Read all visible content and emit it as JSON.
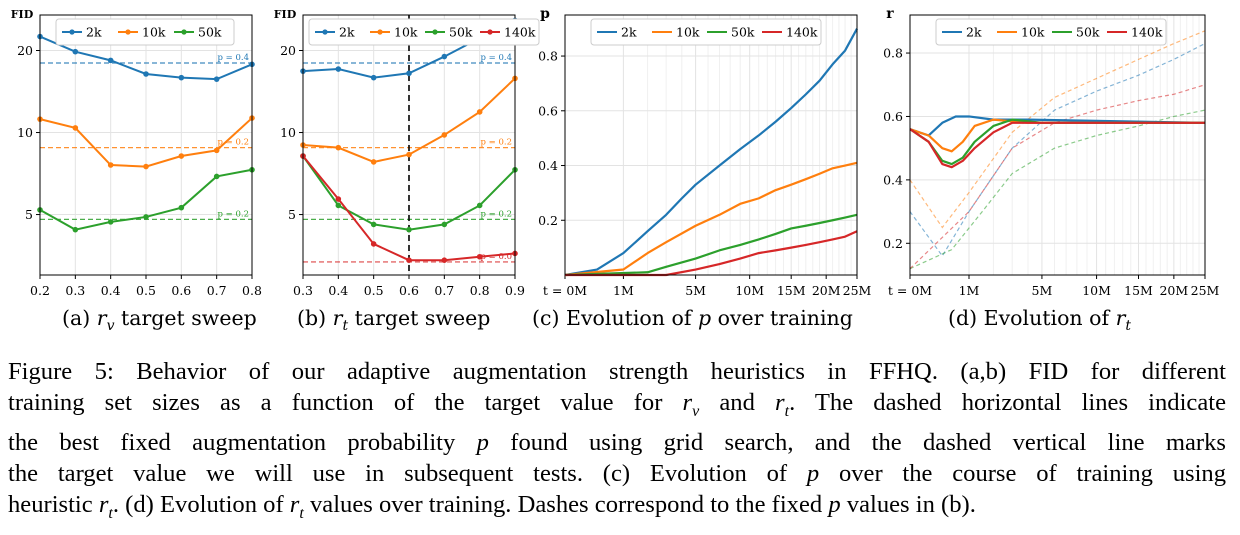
{
  "colors": {
    "blue": "#1f77b4",
    "orange": "#ff7f0e",
    "green": "#2ca02c",
    "red": "#d62728",
    "grid": "#e3e3e3"
  },
  "chart_data": [
    {
      "id": "a",
      "type": "line",
      "ylabel": "FID",
      "y_scale": "log",
      "ylim": [
        3,
        27
      ],
      "yticks": [
        5,
        10,
        20
      ],
      "xlim": [
        0.2,
        0.8
      ],
      "xticks": [
        "0.2",
        "0.3",
        "0.4",
        "0.5",
        "0.6",
        "0.7",
        "0.8"
      ],
      "x": [
        0.2,
        0.3,
        0.4,
        0.5,
        0.6,
        0.7,
        0.8
      ],
      "legend": "top",
      "series": [
        {
          "name": "2k",
          "color": "#1f77b4",
          "values": [
            22.5,
            19.8,
            18.4,
            16.4,
            15.9,
            15.7,
            17.8
          ]
        },
        {
          "name": "10k",
          "color": "#ff7f0e",
          "values": [
            11.2,
            10.4,
            7.6,
            7.5,
            8.2,
            8.6,
            11.3
          ]
        },
        {
          "name": "50k",
          "color": "#2ca02c",
          "values": [
            5.2,
            4.4,
            4.7,
            4.9,
            5.3,
            6.9,
            7.3
          ]
        }
      ],
      "hlines": [
        {
          "label": "p = 0.4",
          "color": "#1f77b4",
          "value": 18.0
        },
        {
          "label": "p = 0.2",
          "color": "#ff7f0e",
          "value": 8.8
        },
        {
          "label": "p = 0.2",
          "color": "#2ca02c",
          "value": 4.8
        }
      ]
    },
    {
      "id": "b",
      "type": "line",
      "ylabel": "FID",
      "y_scale": "log",
      "ylim": [
        3,
        27
      ],
      "yticks": [
        5,
        10,
        20
      ],
      "xlim": [
        0.3,
        0.9
      ],
      "xticks": [
        "0.3",
        "0.4",
        "0.5",
        "0.6",
        "0.7",
        "0.8",
        "0.9"
      ],
      "x": [
        0.3,
        0.4,
        0.5,
        0.6,
        0.7,
        0.8,
        0.9
      ],
      "legend": "top",
      "vline": 0.6,
      "series": [
        {
          "name": "2k",
          "color": "#1f77b4",
          "values": [
            16.8,
            17.1,
            15.9,
            16.5,
            19.0,
            22.2,
            25.8
          ]
        },
        {
          "name": "10k",
          "color": "#ff7f0e",
          "values": [
            9.0,
            8.8,
            7.8,
            8.3,
            9.8,
            11.9,
            15.8
          ]
        },
        {
          "name": "50k",
          "color": "#2ca02c",
          "values": [
            8.2,
            5.4,
            4.6,
            4.4,
            4.6,
            5.4,
            7.3
          ]
        },
        {
          "name": "140k",
          "color": "#d62728",
          "values": [
            8.2,
            5.7,
            3.9,
            3.4,
            3.4,
            3.5,
            3.6
          ]
        }
      ],
      "hlines": [
        {
          "label": "p = 0.4",
          "color": "#1f77b4",
          "value": 18.0
        },
        {
          "label": "p = 0.2",
          "color": "#ff7f0e",
          "value": 8.8
        },
        {
          "label": "p = 0.2",
          "color": "#2ca02c",
          "value": 4.8
        },
        {
          "label": "p = 0.0",
          "color": "#d62728",
          "value": 3.35
        }
      ]
    },
    {
      "id": "c",
      "type": "line",
      "ylabel": "p",
      "x_scale": "sqrt",
      "xlim": [
        0,
        25
      ],
      "ylim": [
        0,
        0.95
      ],
      "yticks": [
        "0.2",
        "0.4",
        "0.6",
        "0.8"
      ],
      "xtick_labels": [
        "t = 0M",
        "1M",
        "5M",
        "10M",
        "15M",
        "20M",
        "25M"
      ],
      "xtick_values": [
        0,
        1,
        5,
        10,
        15,
        20,
        25
      ],
      "legend": "top",
      "series": [
        {
          "name": "2k",
          "color": "#1f77b4",
          "x": [
            0,
            0.3,
            1,
            2,
            3,
            4,
            5,
            7,
            9,
            11,
            13,
            15,
            17,
            19,
            21,
            23,
            25
          ],
          "values": [
            0.0,
            0.02,
            0.08,
            0.16,
            0.22,
            0.28,
            0.33,
            0.4,
            0.46,
            0.51,
            0.56,
            0.61,
            0.66,
            0.71,
            0.77,
            0.82,
            0.9
          ]
        },
        {
          "name": "10k",
          "color": "#ff7f0e",
          "x": [
            0,
            1,
            2,
            3,
            5,
            7,
            9,
            11,
            13,
            15,
            17,
            19,
            21,
            23,
            25
          ],
          "values": [
            0.0,
            0.02,
            0.08,
            0.12,
            0.18,
            0.22,
            0.26,
            0.28,
            0.31,
            0.33,
            0.35,
            0.37,
            0.39,
            0.4,
            0.41
          ]
        },
        {
          "name": "50k",
          "color": "#2ca02c",
          "x": [
            0,
            2,
            3,
            5,
            7,
            9,
            11,
            13,
            15,
            17,
            19,
            21,
            23,
            25
          ],
          "values": [
            0.0,
            0.01,
            0.03,
            0.06,
            0.09,
            0.11,
            0.13,
            0.15,
            0.17,
            0.18,
            0.19,
            0.2,
            0.21,
            0.22
          ]
        },
        {
          "name": "140k",
          "color": "#d62728",
          "x": [
            0,
            3,
            5,
            7,
            9,
            11,
            13,
            15,
            17,
            19,
            21,
            23,
            25
          ],
          "values": [
            0.0,
            0.0,
            0.02,
            0.04,
            0.06,
            0.08,
            0.09,
            0.1,
            0.11,
            0.12,
            0.13,
            0.14,
            0.16
          ]
        }
      ]
    },
    {
      "id": "d",
      "type": "line",
      "ylabel": "r",
      "x_scale": "sqrt",
      "xlim": [
        0,
        25
      ],
      "ylim": [
        0.1,
        0.92
      ],
      "yticks": [
        "0.2",
        "0.4",
        "0.6",
        "0.8"
      ],
      "xtick_labels": [
        "t = 0M",
        "1M",
        "5M",
        "10M",
        "15M",
        "20M",
        "25M"
      ],
      "xtick_values": [
        0,
        1,
        5,
        10,
        15,
        20,
        25
      ],
      "legend": "top",
      "series": [
        {
          "name": "2k",
          "color": "#1f77b4",
          "x": [
            0,
            0.1,
            0.3,
            0.6,
            1,
            2,
            4,
            25
          ],
          "values": [
            0.56,
            0.54,
            0.58,
            0.6,
            0.6,
            0.59,
            0.59,
            0.58
          ]
        },
        {
          "name": "10k",
          "color": "#ff7f0e",
          "x": [
            0,
            0.1,
            0.3,
            0.5,
            0.8,
            1.2,
            2,
            4,
            25
          ],
          "values": [
            0.56,
            0.54,
            0.5,
            0.49,
            0.52,
            0.57,
            0.59,
            0.58,
            0.58
          ]
        },
        {
          "name": "50k",
          "color": "#2ca02c",
          "x": [
            0,
            0.1,
            0.3,
            0.5,
            0.8,
            1.2,
            2,
            3,
            5,
            25
          ],
          "values": [
            0.56,
            0.52,
            0.46,
            0.45,
            0.47,
            0.52,
            0.57,
            0.59,
            0.58,
            0.58
          ]
        },
        {
          "name": "140k",
          "color": "#d62728",
          "x": [
            0,
            0.1,
            0.3,
            0.5,
            0.8,
            1.2,
            2,
            3,
            5,
            25
          ],
          "values": [
            0.56,
            0.52,
            0.45,
            0.44,
            0.46,
            0.5,
            0.55,
            0.58,
            0.58,
            0.58
          ]
        }
      ],
      "dashed_series": [
        {
          "name": "2k",
          "color": "#1f77b4",
          "x": [
            0,
            0.3,
            1,
            3,
            6,
            10,
            15,
            20,
            25
          ],
          "values": [
            0.3,
            0.16,
            0.3,
            0.5,
            0.62,
            0.68,
            0.73,
            0.78,
            0.83
          ]
        },
        {
          "name": "10k",
          "color": "#ff7f0e",
          "x": [
            0,
            0.3,
            1,
            3,
            6,
            10,
            15,
            20,
            25
          ],
          "values": [
            0.4,
            0.25,
            0.36,
            0.55,
            0.66,
            0.72,
            0.78,
            0.83,
            0.87
          ]
        },
        {
          "name": "50k",
          "color": "#2ca02c",
          "x": [
            0,
            0.5,
            1.5,
            3,
            6,
            10,
            15,
            20,
            25
          ],
          "values": [
            0.12,
            0.18,
            0.3,
            0.42,
            0.5,
            0.54,
            0.57,
            0.6,
            0.62
          ]
        },
        {
          "name": "140k",
          "color": "#d62728",
          "x": [
            0,
            1,
            3,
            6,
            10,
            15,
            20,
            25
          ],
          "values": [
            0.12,
            0.3,
            0.5,
            0.58,
            0.62,
            0.65,
            0.67,
            0.7
          ]
        }
      ]
    }
  ],
  "subcaptions": {
    "a_pre": "(a)",
    "a_var": "r",
    "a_sub": "v",
    "a_post": " target sweep",
    "b_pre": "(b)",
    "b_var": "r",
    "b_sub": "t",
    "b_post": " target sweep",
    "c_pre": "(c) Evolution of ",
    "c_var": "p",
    "c_post": " over training",
    "d_pre": "(d) Evolution of ",
    "d_var": "r",
    "d_sub": "t"
  },
  "caption": {
    "l1": "Figure 5: Behavior of our adaptive augmentation strength heuristics in FFHQ. (a,b) FID for different",
    "l2_a": "training set sizes as a function of the target value for ",
    "l2_b": " and ",
    "l2_c": ". The dashed horizontal lines indicate",
    "l3_a": "the best fixed augmentation probability ",
    "l3_b": " found using grid search, and the dashed vertical line marks",
    "l4": "the target value we will use in subsequent tests. (c) Evolution of",
    "l4_b": " over the course of training using",
    "l5_a": "heuristic ",
    "l5_b": ". (d) Evolution of ",
    "l5_c": " values over training. Dashes correspond to the fixed ",
    "l5_d": " values in (b).",
    "var_r": "r",
    "var_p": "p",
    "sub_v": "v",
    "sub_t": "t"
  }
}
